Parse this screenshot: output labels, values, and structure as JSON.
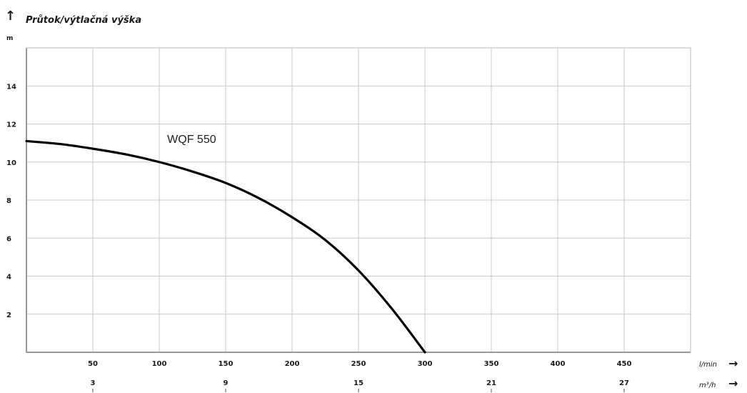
{
  "chart_data": {
    "type": "line",
    "title": "Průtok/výtlačná výška",
    "y_unit": "m",
    "x_unit": "l/min",
    "x2_unit": "m³/h",
    "ylim": [
      0,
      16
    ],
    "xlim": [
      0,
      500
    ],
    "y_ticks": [
      2,
      4,
      6,
      8,
      10,
      12,
      14
    ],
    "x_ticks": [
      50,
      100,
      150,
      200,
      250,
      300,
      350,
      400,
      450
    ],
    "x2_ticks": [
      {
        "label": "3",
        "lmin": 50
      },
      {
        "label": "9",
        "lmin": 150
      },
      {
        "label": "15",
        "lmin": 250
      },
      {
        "label": "21",
        "lmin": 350
      },
      {
        "label": "27",
        "lmin": 450
      }
    ],
    "grid": true,
    "series": [
      {
        "name": "WQF 550",
        "color": "#000000",
        "x": [
          0,
          25,
          50,
          75,
          100,
          125,
          150,
          175,
          200,
          225,
          250,
          275,
          300
        ],
        "y": [
          11.1,
          10.95,
          10.7,
          10.4,
          10.0,
          9.5,
          8.9,
          8.1,
          7.1,
          5.9,
          4.3,
          2.3,
          0
        ]
      }
    ]
  },
  "arrows": {
    "up": "↑",
    "right": "→"
  }
}
